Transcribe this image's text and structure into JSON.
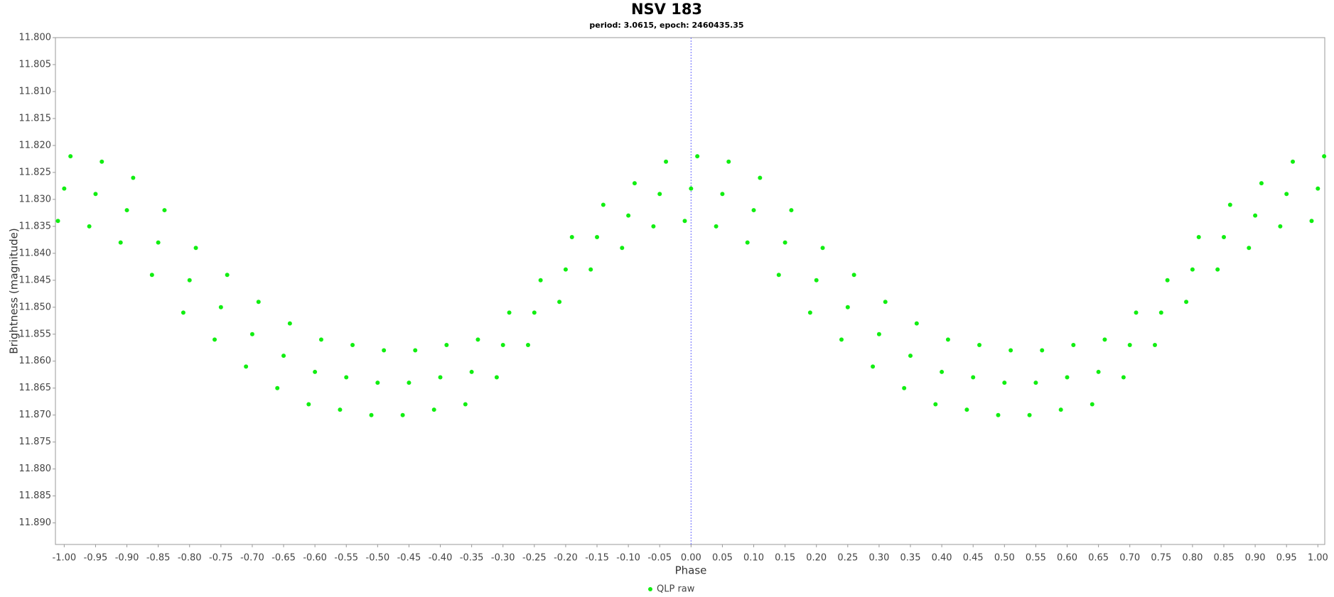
{
  "chart_data": {
    "type": "scatter",
    "title": "NSV 183",
    "subtitle": "period: 3.0615, epoch: 2460435.35",
    "x_label": "Phase",
    "y_label": "Brightness (magnitude)",
    "xlim": [
      -1.014,
      1.011
    ],
    "ylim": [
      11.8,
      11.894
    ],
    "y_inverted": true,
    "vline": 0,
    "xticks": [
      {
        "value": -1,
        "label": "-1.00"
      },
      {
        "value": -0.95,
        "label": "-0.95"
      },
      {
        "value": -0.9,
        "label": "-0.90"
      },
      {
        "value": -0.85,
        "label": "-0.85"
      },
      {
        "value": -0.8,
        "label": "-0.80"
      },
      {
        "value": -0.75,
        "label": "-0.75"
      },
      {
        "value": -0.7,
        "label": "-0.70"
      },
      {
        "value": -0.65,
        "label": "-0.65"
      },
      {
        "value": -0.6,
        "label": "-0.60"
      },
      {
        "value": -0.55,
        "label": "-0.55"
      },
      {
        "value": -0.5,
        "label": "-0.50"
      },
      {
        "value": -0.45,
        "label": "-0.45"
      },
      {
        "value": -0.4,
        "label": "-0.40"
      },
      {
        "value": -0.35,
        "label": "-0.35"
      },
      {
        "value": -0.3,
        "label": "-0.30"
      },
      {
        "value": -0.25,
        "label": "-0.25"
      },
      {
        "value": -0.2,
        "label": "-0.20"
      },
      {
        "value": -0.15,
        "label": "-0.15"
      },
      {
        "value": -0.1,
        "label": "-0.10"
      },
      {
        "value": -0.05,
        "label": "-0.05"
      },
      {
        "value": 0,
        "label": "0.00"
      },
      {
        "value": 0.05,
        "label": "0.05"
      },
      {
        "value": 0.1,
        "label": "0.10"
      },
      {
        "value": 0.15,
        "label": "0.15"
      },
      {
        "value": 0.2,
        "label": "0.20"
      },
      {
        "value": 0.25,
        "label": "0.25"
      },
      {
        "value": 0.3,
        "label": "0.30"
      },
      {
        "value": 0.35,
        "label": "0.35"
      },
      {
        "value": 0.4,
        "label": "0.40"
      },
      {
        "value": 0.45,
        "label": "0.45"
      },
      {
        "value": 0.5,
        "label": "0.50"
      },
      {
        "value": 0.55,
        "label": "0.55"
      },
      {
        "value": 0.6,
        "label": "0.60"
      },
      {
        "value": 0.65,
        "label": "0.65"
      },
      {
        "value": 0.7,
        "label": "0.70"
      },
      {
        "value": 0.75,
        "label": "0.75"
      },
      {
        "value": 0.8,
        "label": "0.80"
      },
      {
        "value": 0.85,
        "label": "0.85"
      },
      {
        "value": 0.9,
        "label": "0.90"
      },
      {
        "value": 0.95,
        "label": "0.95"
      },
      {
        "value": 1,
        "label": "1.00"
      }
    ],
    "yticks": [
      {
        "value": 11.8,
        "label": "11.800"
      },
      {
        "value": 11.805,
        "label": "11.805"
      },
      {
        "value": 11.81,
        "label": "11.810"
      },
      {
        "value": 11.815,
        "label": "11.815"
      },
      {
        "value": 11.82,
        "label": "11.820"
      },
      {
        "value": 11.825,
        "label": "11.825"
      },
      {
        "value": 11.83,
        "label": "11.830"
      },
      {
        "value": 11.835,
        "label": "11.835"
      },
      {
        "value": 11.84,
        "label": "11.840"
      },
      {
        "value": 11.845,
        "label": "11.845"
      },
      {
        "value": 11.85,
        "label": "11.850"
      },
      {
        "value": 11.855,
        "label": "11.855"
      },
      {
        "value": 11.86,
        "label": "11.860"
      },
      {
        "value": 11.865,
        "label": "11.865"
      },
      {
        "value": 11.87,
        "label": "11.870"
      },
      {
        "value": 11.875,
        "label": "11.875"
      },
      {
        "value": 11.88,
        "label": "11.880"
      },
      {
        "value": 11.885,
        "label": "11.885"
      },
      {
        "value": 11.89,
        "label": "11.890"
      }
    ],
    "series": [
      {
        "name": "QLP raw",
        "color": "#11ee11",
        "x": [
          -1,
          -0.95,
          -0.9,
          -0.85,
          -0.8,
          -0.75,
          -0.7,
          -0.65,
          -0.6,
          -0.55,
          -0.5,
          -0.45,
          -0.4,
          -0.35,
          -0.3,
          -0.25,
          -0.2,
          -0.15,
          -0.1,
          -0.05,
          0,
          0.05,
          0.1,
          0.15,
          0.2,
          0.25,
          0.3,
          0.35,
          0.4,
          0.45,
          0.5,
          0.55,
          0.6,
          0.65,
          0.7,
          0.75,
          0.8,
          0.85,
          0.9,
          0.95,
          1,
          -0.99,
          -0.94,
          -0.89,
          -0.84,
          -0.79,
          -0.74,
          -0.69,
          -0.64,
          -0.59,
          -0.54,
          -0.49,
          -0.44,
          -0.39,
          -0.34,
          -0.29,
          -0.24,
          -0.19,
          -0.14,
          -0.09,
          -0.04,
          0.01,
          0.06,
          0.11,
          0.16,
          0.21,
          0.26,
          0.31,
          0.36,
          0.41,
          0.46,
          0.51,
          0.56,
          0.61,
          0.66,
          0.71,
          0.76,
          0.81,
          0.86,
          0.91,
          0.96,
          1.01,
          -1.01,
          -0.96,
          -0.91,
          -0.86,
          -0.81,
          -0.76,
          -0.71,
          -0.66,
          -0.61,
          -0.56,
          -0.51,
          -0.46,
          -0.41,
          -0.36,
          -0.31,
          -0.26,
          -0.21,
          -0.16,
          -0.11,
          -0.06,
          -0.01,
          0.04,
          0.09,
          0.14,
          0.19,
          0.24,
          0.29,
          0.34,
          0.39,
          0.44,
          0.49,
          0.54,
          0.59,
          0.64,
          0.69,
          0.74,
          0.79,
          0.84,
          0.89,
          0.94,
          0.99
        ],
        "values": [
          11.828,
          11.829,
          11.832,
          11.838,
          11.845,
          11.85,
          11.855,
          11.859,
          11.862,
          11.863,
          11.864,
          11.864,
          11.863,
          11.862,
          11.857,
          11.851,
          11.843,
          11.837,
          11.833,
          11.829,
          11.828,
          11.829,
          11.832,
          11.838,
          11.845,
          11.85,
          11.855,
          11.859,
          11.862,
          11.863,
          11.864,
          11.864,
          11.863,
          11.862,
          11.857,
          11.851,
          11.843,
          11.837,
          11.833,
          11.829,
          11.828,
          11.822,
          11.823,
          11.826,
          11.832,
          11.839,
          11.844,
          11.849,
          11.853,
          11.856,
          11.857,
          11.858,
          11.858,
          11.857,
          11.856,
          11.851,
          11.845,
          11.837,
          11.831,
          11.827,
          11.823,
          11.822,
          11.823,
          11.826,
          11.832,
          11.839,
          11.844,
          11.849,
          11.853,
          11.856,
          11.857,
          11.858,
          11.858,
          11.857,
          11.856,
          11.851,
          11.845,
          11.837,
          11.831,
          11.827,
          11.823,
          11.822,
          11.834,
          11.835,
          11.838,
          11.844,
          11.851,
          11.856,
          11.861,
          11.865,
          11.868,
          11.869,
          11.87,
          11.87,
          11.869,
          11.868,
          11.863,
          11.857,
          11.849,
          11.843,
          11.839,
          11.835,
          11.834,
          11.835,
          11.838,
          11.844,
          11.851,
          11.856,
          11.861,
          11.865,
          11.868,
          11.869,
          11.87,
          11.87,
          11.869,
          11.868,
          11.863,
          11.857,
          11.849,
          11.843,
          11.839,
          11.835,
          11.834
        ]
      }
    ]
  }
}
